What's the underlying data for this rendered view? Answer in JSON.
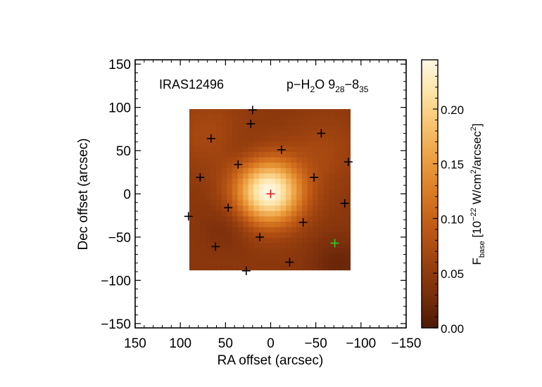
{
  "chart_data": {
    "type": "heatmap",
    "source_label": "IRAS12496",
    "line_label": {
      "prefix": "p−H",
      "sub1": "2",
      "mid": "O 9",
      "sub2": "28",
      "dash": "−8",
      "sub3": "35"
    },
    "xlabel": "RA offset (arcsec)",
    "ylabel": "Dec offset (arcsec)",
    "xlim": [
      150,
      -150
    ],
    "ylim": [
      -155,
      155
    ],
    "xticks": [
      150,
      100,
      50,
      0,
      -50,
      -100,
      -150
    ],
    "xtick_labels": [
      "150",
      "100",
      "50",
      "0",
      "−50",
      "−100",
      "−150"
    ],
    "yticks": [
      150,
      100,
      50,
      0,
      -50,
      -100,
      -150
    ],
    "ytick_labels": [
      "150",
      "100",
      "50",
      "0",
      "−50",
      "−100",
      "−150"
    ],
    "map_extent": {
      "x": [
        90,
        -88
      ],
      "y": [
        -88,
        98
      ]
    },
    "peak": {
      "x": 2,
      "y": 2,
      "value": 0.245
    },
    "colorbar": {
      "range": [
        0.0,
        0.245
      ],
      "ticks": [
        0.0,
        0.05,
        0.1,
        0.15,
        0.2
      ],
      "tick_labels": [
        "0.00",
        "0.05",
        "0.10",
        "0.15",
        "0.20"
      ],
      "label": {
        "f": "F",
        "fsub": "base",
        "pre": " [10",
        "exp1": "−22",
        "mid": " W/cm",
        "exp2": "2",
        "mid2": "/arcsec",
        "exp3": "2",
        "post": "]"
      }
    },
    "spaxels_black": [
      [
        20,
        97
      ],
      [
        -56,
        70
      ],
      [
        -86,
        37
      ],
      [
        -48,
        19
      ],
      [
        -82,
        -11
      ],
      [
        -36,
        -33
      ],
      [
        -21,
        -79
      ],
      [
        12,
        -50
      ],
      [
        27,
        -89
      ],
      [
        61,
        -61
      ],
      [
        91,
        -26
      ],
      [
        47,
        -16
      ],
      [
        78,
        19
      ],
      [
        36,
        34
      ],
      [
        -12,
        51
      ],
      [
        66,
        64
      ],
      [
        22,
        81
      ]
    ],
    "spaxel_center": [
      0,
      0
    ],
    "spaxel_green": [
      -71,
      -57
    ],
    "colors": {
      "cmap": [
        "#4b1a05",
        "#7a2e0b",
        "#9d420f",
        "#bf5a16",
        "#d97a22",
        "#eb9d3e",
        "#f7c16d",
        "#fde3a5",
        "#fff8e6"
      ],
      "black_marker": "#000000",
      "center_marker": "#e4141b",
      "green_marker": "#21d42a"
    }
  }
}
